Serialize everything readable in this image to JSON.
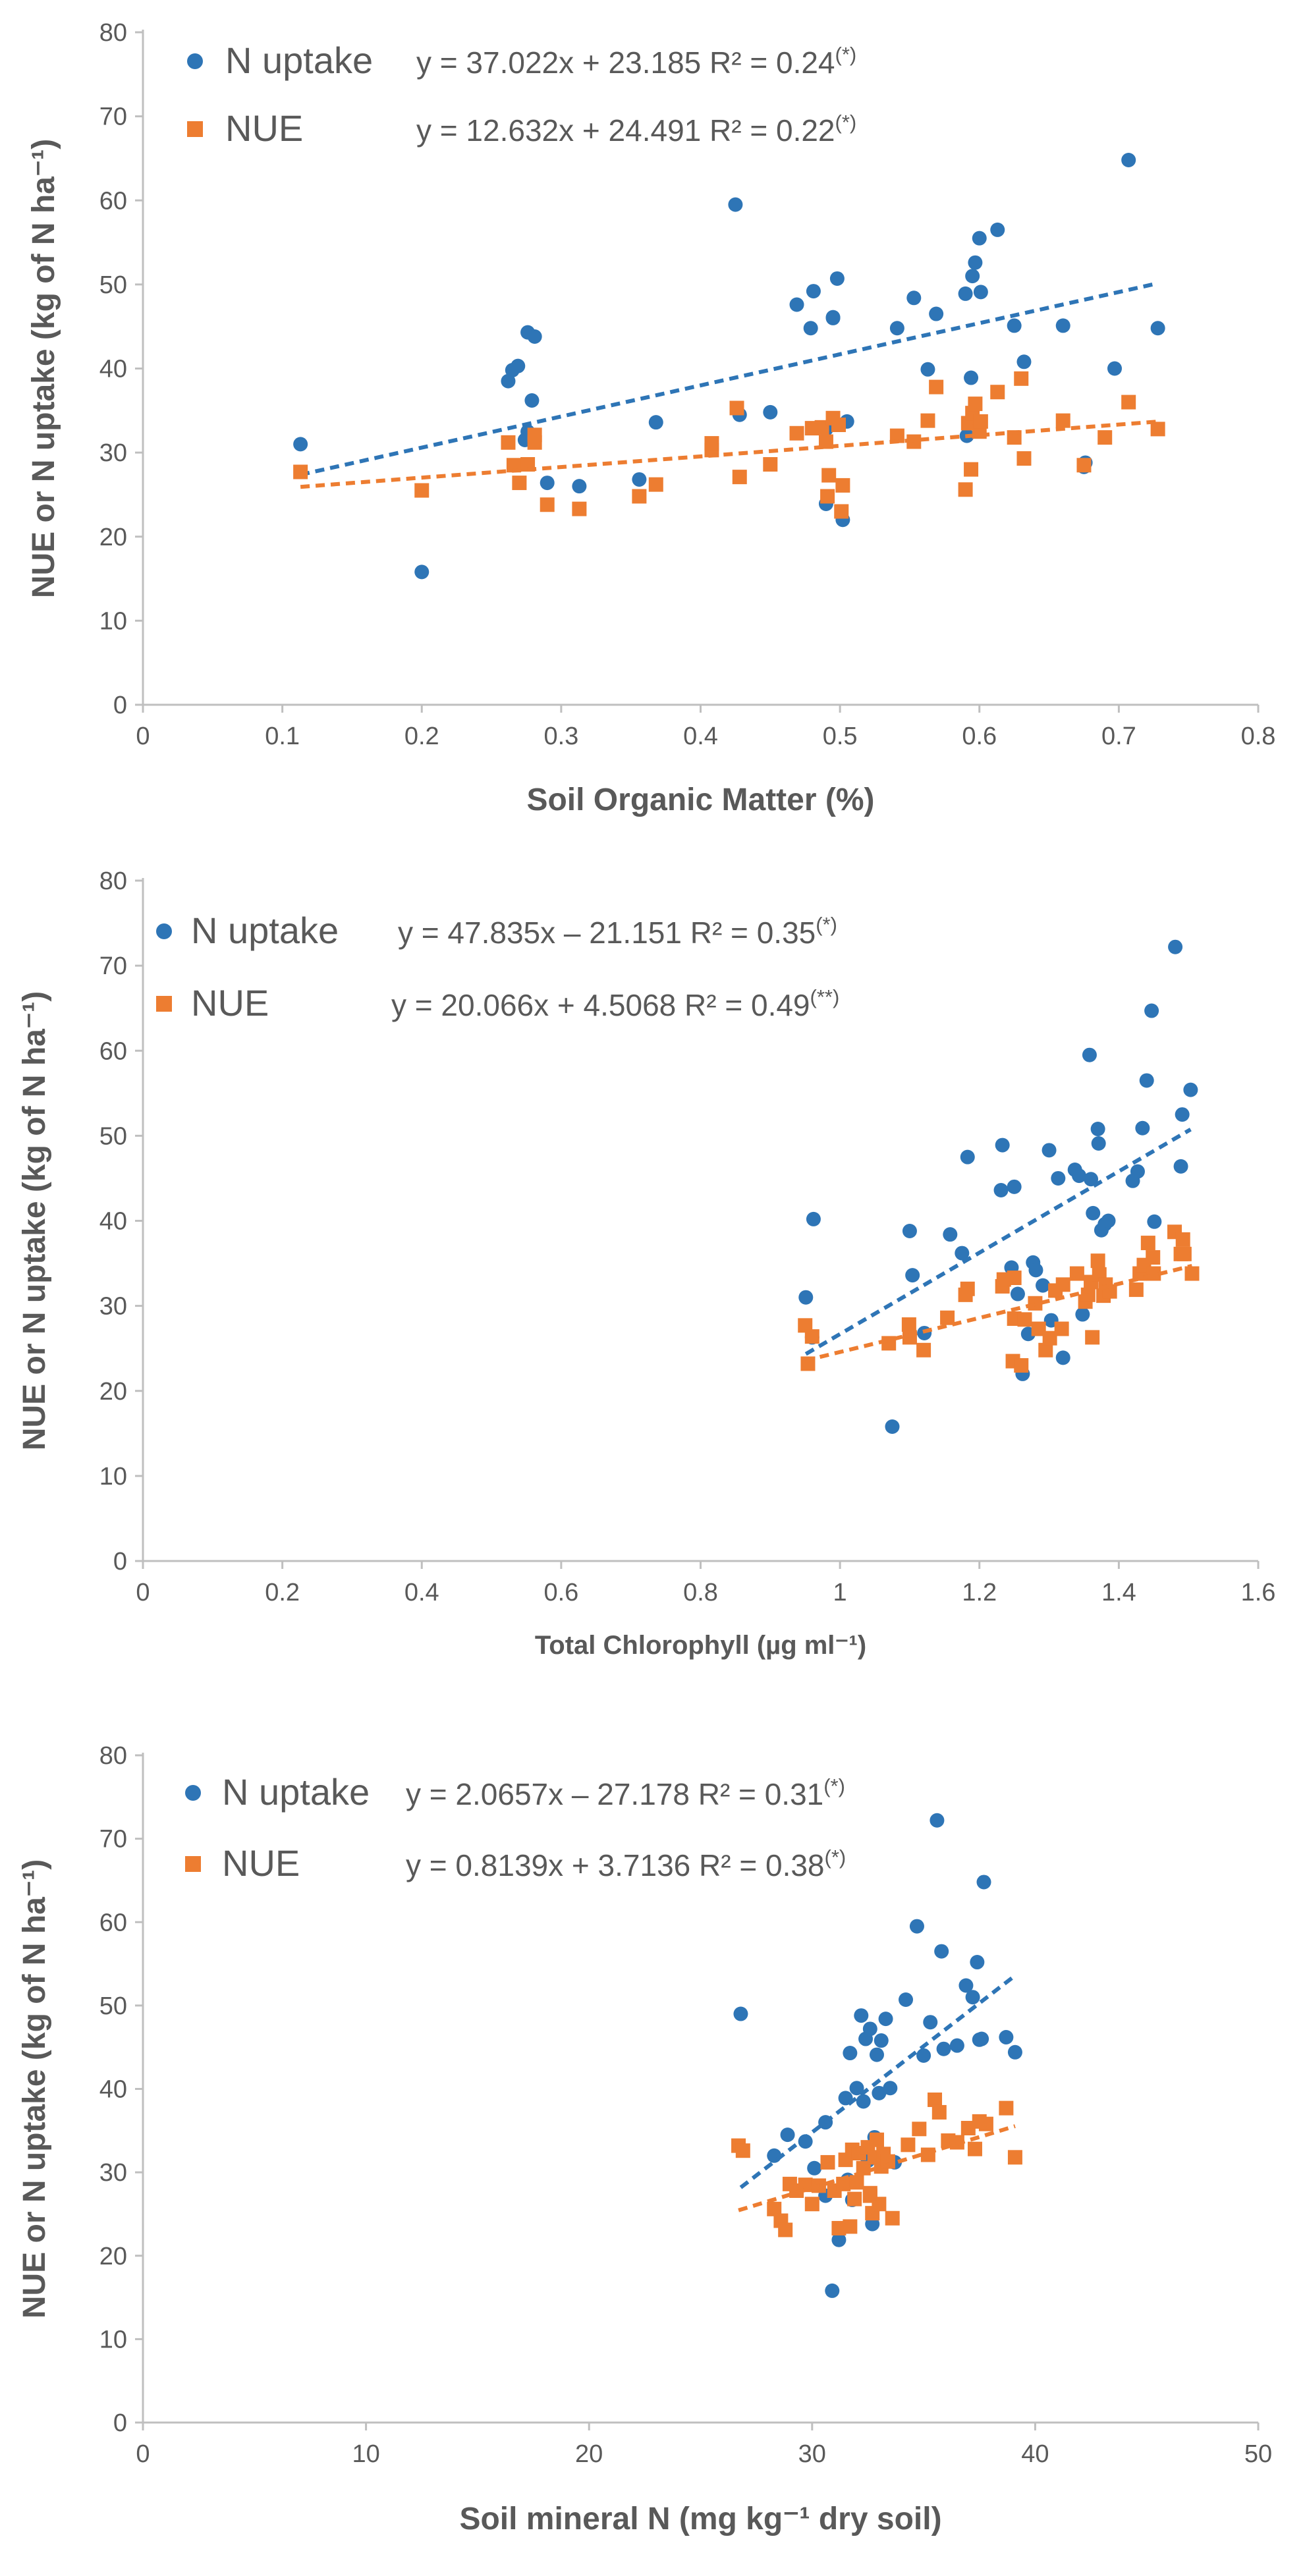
{
  "colors": {
    "n_uptake": "#2E75B6",
    "nue": "#ED7D31",
    "axis": "#BFBFBF",
    "text": "#595959"
  },
  "chart_data": [
    {
      "type": "scatter",
      "xlabel": "Soil Organic Matter (%)",
      "ylabel": "NUE or N uptake (kg of N ha⁻¹)",
      "xlim": [
        0,
        0.8
      ],
      "ylim": [
        0,
        80
      ],
      "xticks": [
        0,
        0.1,
        0.2,
        0.3,
        0.4,
        0.5,
        0.6,
        0.7,
        0.8
      ],
      "xtick_labels": [
        "0",
        "0.1",
        "0.2",
        "0.3",
        "0.4",
        "0.5",
        "0.6",
        "0.7",
        "0.8"
      ],
      "yticks": [
        0,
        10,
        20,
        30,
        40,
        50,
        60,
        70,
        80
      ],
      "ytick_labels": [
        "0",
        "10",
        "20",
        "30",
        "40",
        "50",
        "60",
        "70",
        "80"
      ],
      "series": [
        {
          "name": "N uptake",
          "marker": "circle",
          "equation": "y = 37.022x + 23.185 R² = 0.24",
          "significance": "(*)",
          "trend": {
            "slope": 37.022,
            "intercept": 23.185
          },
          "x": [
            0.113,
            0.2,
            0.262,
            0.265,
            0.269,
            0.276,
            0.274,
            0.281,
            0.279,
            0.276,
            0.29,
            0.313,
            0.356,
            0.368,
            0.425,
            0.428,
            0.45,
            0.469,
            0.479,
            0.481,
            0.49,
            0.49,
            0.495,
            0.495,
            0.498,
            0.502,
            0.505,
            0.541,
            0.553,
            0.563,
            0.569,
            0.59,
            0.591,
            0.594,
            0.595,
            0.597,
            0.6,
            0.601,
            0.613,
            0.625,
            0.632,
            0.66,
            0.675,
            0.676,
            0.697,
            0.707,
            0.728
          ],
          "y": [
            31,
            15.8,
            38.5,
            39.8,
            40.3,
            44.3,
            31.5,
            43.8,
            36.2,
            32.5,
            26.4,
            26,
            26.8,
            33.6,
            59.5,
            34.5,
            34.8,
            47.6,
            44.8,
            49.2,
            23.9,
            32.8,
            46,
            46.1,
            50.7,
            22,
            33.7,
            44.8,
            48.4,
            39.9,
            46.5,
            48.9,
            32,
            38.9,
            51,
            52.6,
            55.5,
            49.1,
            56.5,
            45.1,
            40.8,
            45.1,
            28.3,
            28.8,
            40,
            64.8,
            44.8
          ]
        },
        {
          "name": "NUE",
          "marker": "square",
          "equation": "y = 12.632x + 24.491 R² = 0.22",
          "significance": "(*)",
          "trend": {
            "slope": 12.632,
            "intercept": 24.491
          },
          "x": [
            0.113,
            0.2,
            0.262,
            0.266,
            0.27,
            0.276,
            0.281,
            0.281,
            0.29,
            0.313,
            0.356,
            0.368,
            0.408,
            0.408,
            0.426,
            0.428,
            0.45,
            0.469,
            0.48,
            0.487,
            0.49,
            0.491,
            0.492,
            0.495,
            0.499,
            0.501,
            0.502,
            0.541,
            0.553,
            0.563,
            0.569,
            0.59,
            0.592,
            0.594,
            0.595,
            0.597,
            0.6,
            0.601,
            0.613,
            0.625,
            0.63,
            0.632,
            0.66,
            0.675,
            0.69,
            0.707,
            0.728
          ],
          "y": [
            27.7,
            25.5,
            31.2,
            28.5,
            26.4,
            28.6,
            32.1,
            31.2,
            23.8,
            23.3,
            24.8,
            26.2,
            30.3,
            31.1,
            35.3,
            27.1,
            28.6,
            32.3,
            32.9,
            33,
            31.3,
            24.8,
            27.3,
            34.1,
            33.3,
            23,
            26.1,
            32,
            31.3,
            33.8,
            37.8,
            25.6,
            33.5,
            28,
            34.7,
            35.8,
            32.5,
            33.7,
            37.2,
            31.8,
            38.8,
            29.3,
            33.8,
            28.5,
            31.8,
            36,
            32.8
          ]
        }
      ]
    },
    {
      "type": "scatter",
      "xlabel": "Total Chlorophyll (µg ml⁻¹)",
      "ylabel": "NUE or N uptake (kg of N ha⁻¹)",
      "xlim": [
        0,
        1.6
      ],
      "ylim": [
        0,
        80
      ],
      "xticks": [
        0,
        0.2,
        0.4,
        0.6,
        0.8,
        1,
        1.2,
        1.4,
        1.6
      ],
      "xtick_labels": [
        "0",
        "0.2",
        "0.4",
        "0.6",
        "0.8",
        "1",
        "1.2",
        "1.4",
        "1.6"
      ],
      "yticks": [
        0,
        10,
        20,
        30,
        40,
        50,
        60,
        70,
        80
      ],
      "ytick_labels": [
        "0",
        "10",
        "20",
        "30",
        "40",
        "50",
        "60",
        "70",
        "80"
      ],
      "series": [
        {
          "name": "N uptake",
          "marker": "circle",
          "equation": "y = 47.835x – 21.151 R² = 0.35",
          "significance": "(*)",
          "trend": {
            "slope": 47.835,
            "intercept": -21.151
          },
          "x": [
            0.951,
            0.96,
            0.962,
            1.075,
            1.1,
            1.104,
            1.121,
            1.158,
            1.175,
            1.183,
            1.231,
            1.233,
            1.246,
            1.25,
            1.255,
            1.262,
            1.27,
            1.277,
            1.281,
            1.291,
            1.3,
            1.303,
            1.313,
            1.32,
            1.337,
            1.343,
            1.348,
            1.358,
            1.36,
            1.363,
            1.37,
            1.371,
            1.375,
            1.38,
            1.385,
            1.42,
            1.427,
            1.434,
            1.44,
            1.447,
            1.451,
            1.481,
            1.489,
            1.491,
            1.503
          ],
          "y": [
            31,
            26.3,
            40.2,
            15.8,
            38.8,
            33.6,
            26.8,
            38.4,
            36.2,
            47.5,
            43.6,
            48.9,
            34.5,
            44,
            31.4,
            22,
            26.7,
            35.1,
            34.2,
            32.4,
            48.3,
            28.3,
            45,
            23.9,
            46,
            45.3,
            29,
            59.5,
            44.9,
            40.9,
            50.8,
            49.1,
            38.9,
            39.6,
            40,
            44.7,
            45.8,
            50.9,
            56.5,
            64.7,
            39.9,
            72.2,
            46.4,
            52.5,
            55.4
          ]
        },
        {
          "name": "NUE",
          "marker": "square",
          "equation": "y = 20.066x + 4.5068 R² = 0.49",
          "significance": "(**)",
          "trend": {
            "slope": 20.066,
            "intercept": 4.5068
          },
          "x": [
            0.95,
            0.954,
            0.96,
            1.07,
            1.099,
            1.1,
            1.12,
            1.154,
            1.18,
            1.183,
            1.233,
            1.235,
            1.248,
            1.25,
            1.25,
            1.26,
            1.265,
            1.28,
            1.285,
            1.295,
            1.301,
            1.309,
            1.318,
            1.32,
            1.34,
            1.352,
            1.356,
            1.36,
            1.362,
            1.37,
            1.372,
            1.378,
            1.381,
            1.387,
            1.425,
            1.43,
            1.436,
            1.442,
            1.449,
            1.45,
            1.48,
            1.489,
            1.492,
            1.494,
            1.505
          ],
          "y": [
            27.7,
            23.2,
            26.4,
            25.6,
            27.8,
            26.3,
            24.8,
            28.6,
            31.3,
            32,
            32.3,
            33.1,
            23.5,
            28.5,
            33.3,
            23,
            28.4,
            30.3,
            27.3,
            24.8,
            26.2,
            31.8,
            27.3,
            32.5,
            33.8,
            30.5,
            31.3,
            32.8,
            26.3,
            35.3,
            33.7,
            31.2,
            32.5,
            31.7,
            31.9,
            33.8,
            34.8,
            37.4,
            35.7,
            33.8,
            38.7,
            36.1,
            37.8,
            36.1,
            33.8
          ]
        }
      ]
    },
    {
      "type": "scatter",
      "xlabel": "Soil mineral N (mg kg⁻¹ dry soil)",
      "ylabel": "NUE or N uptake (kg of N ha⁻¹)",
      "xlim": [
        0,
        50
      ],
      "ylim": [
        0,
        80
      ],
      "xticks": [
        0,
        10,
        20,
        30,
        40,
        50
      ],
      "xtick_labels": [
        "0",
        "10",
        "20",
        "30",
        "40",
        "50"
      ],
      "yticks": [
        0,
        10,
        20,
        30,
        40,
        50,
        60,
        70,
        80
      ],
      "ytick_labels": [
        "0",
        "10",
        "20",
        "30",
        "40",
        "50",
        "60",
        "70",
        "80"
      ],
      "series": [
        {
          "name": "N uptake",
          "marker": "circle",
          "equation": "y = 2.0657x – 27.178 R² = 0.31",
          "significance": "(*)",
          "trend": {
            "slope": 2.0657,
            "intercept": -27.178
          },
          "x": [
            26.8,
            28.3,
            28.9,
            29.7,
            30.1,
            30.6,
            30.9,
            31.2,
            31.5,
            31.7,
            31.8,
            32.0,
            32.2,
            32.3,
            32.4,
            32.5,
            32.6,
            32.7,
            32.8,
            32.9,
            33.0,
            33.1,
            33.3,
            33.5,
            33.7,
            34.2,
            34.7,
            35.0,
            35.3,
            35.6,
            35.8,
            35.9,
            36.5,
            36.9,
            37.2,
            37.4,
            37.5,
            37.6,
            37.7,
            38.7,
            39.1,
            30.6,
            31.6
          ],
          "y": [
            49,
            32,
            34.5,
            33.7,
            30.5,
            36,
            15.8,
            21.9,
            38.9,
            44.3,
            26.7,
            40.1,
            48.8,
            38.5,
            46,
            31.4,
            47.2,
            23.8,
            34.2,
            44.1,
            39.5,
            45.8,
            48.4,
            40.1,
            31.2,
            50.7,
            59.5,
            44,
            48,
            72.2,
            56.5,
            44.8,
            45.2,
            52.4,
            51,
            55.2,
            45.9,
            46,
            64.8,
            46.2,
            44.4,
            27.2,
            29.1
          ]
        },
        {
          "name": "NUE",
          "marker": "square",
          "equation": "y = 0.8139x + 3.7136 R² = 0.38",
          "significance": "(*)",
          "trend": {
            "slope": 0.8139,
            "intercept": 3.7136
          },
          "x": [
            26.7,
            26.9,
            28.3,
            28.6,
            28.8,
            29,
            29.3,
            29.7,
            30,
            30.3,
            30.7,
            31,
            31.2,
            31.4,
            31.5,
            31.7,
            31.8,
            32,
            32.1,
            32.3,
            32.5,
            32.6,
            32.7,
            32.8,
            32.9,
            33,
            33.1,
            33.2,
            33.4,
            33.6,
            34.3,
            34.8,
            35.2,
            35.5,
            35.7,
            36.1,
            36.5,
            37,
            37.3,
            37.5,
            37.8,
            38.7,
            39.1,
            31.9,
            32.6
          ],
          "y": [
            33.2,
            32.6,
            25.6,
            24.2,
            23.1,
            28.6,
            27.8,
            28.5,
            26.2,
            28.4,
            31.2,
            27.8,
            23.3,
            28.6,
            31.5,
            23.5,
            32.7,
            28.8,
            32.3,
            30.5,
            33,
            27.2,
            25.1,
            31.8,
            33.9,
            26.2,
            30.7,
            32.2,
            31.3,
            24.5,
            33.3,
            35.2,
            32.1,
            38.7,
            37.2,
            33.8,
            33.6,
            35.3,
            32.8,
            36.1,
            35.8,
            37.7,
            31.8,
            26.8,
            27.5
          ]
        }
      ]
    }
  ]
}
